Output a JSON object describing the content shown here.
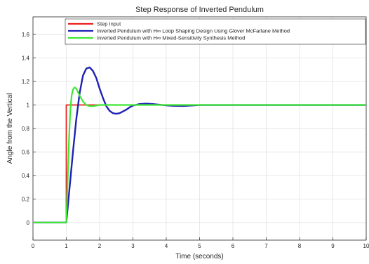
{
  "chart_data": {
    "type": "line",
    "title": "Step Response of Inverted Pendulum",
    "xlabel": "Time (seconds)",
    "ylabel": "Angle from the Vertical",
    "xlim": [
      0,
      10
    ],
    "ylim": [
      -0.15,
      1.75
    ],
    "xticks": [
      "0",
      "1",
      "2",
      "3",
      "4",
      "5",
      "6",
      "7",
      "8",
      "9",
      "10"
    ],
    "xtick_values": [
      0,
      1,
      2,
      3,
      4,
      5,
      6,
      7,
      8,
      9,
      10
    ],
    "yticks": [
      "0",
      "0.2",
      "0.4",
      "0.6",
      "0.8",
      "1",
      "1.2",
      "1.4",
      "1.6"
    ],
    "ytick_values": [
      0,
      0.2,
      0.4,
      0.6,
      0.8,
      1.0,
      1.2,
      1.4,
      1.6
    ],
    "grid": true,
    "legend_position": "top",
    "series": [
      {
        "name": "Step Input",
        "color": "#e8231f",
        "x": [
          0,
          1.0,
          1.0,
          10
        ],
        "y": [
          0,
          0,
          1,
          1
        ]
      },
      {
        "name": "Inverted Pendulum with H∞ Loop Shaping Design Using Glover McFarlane Method",
        "color": "#1f22b4",
        "x": [
          0,
          1.0,
          1.1,
          1.2,
          1.3,
          1.4,
          1.5,
          1.6,
          1.7,
          1.8,
          1.9,
          2.0,
          2.1,
          2.2,
          2.3,
          2.4,
          2.5,
          2.6,
          2.7,
          2.8,
          2.9,
          3.0,
          3.2,
          3.4,
          3.6,
          3.8,
          4.0,
          4.2,
          4.5,
          4.8,
          5.0,
          6.0,
          7.0,
          8.0,
          9.0,
          10
        ],
        "y": [
          0,
          0,
          0.3,
          0.6,
          0.88,
          1.1,
          1.25,
          1.31,
          1.32,
          1.29,
          1.23,
          1.14,
          1.06,
          0.99,
          0.95,
          0.93,
          0.925,
          0.93,
          0.945,
          0.96,
          0.98,
          0.995,
          1.008,
          1.012,
          1.008,
          1.002,
          0.997,
          0.993,
          0.992,
          0.996,
          1.0,
          1.0,
          1.0,
          1.0,
          1.0,
          1.0
        ]
      },
      {
        "name": "Inverted Pendulum with H∞ Mixed-Sensitivity Synthesis Method",
        "color": "#3ee831",
        "x": [
          0,
          1.0,
          1.04,
          1.08,
          1.12,
          1.16,
          1.2,
          1.25,
          1.3,
          1.35,
          1.4,
          1.5,
          1.6,
          1.7,
          1.8,
          1.9,
          2.0,
          2.2,
          2.5,
          3.0,
          4.0,
          5.0,
          6.0,
          7.0,
          8.0,
          9.0,
          10
        ],
        "y": [
          0,
          0,
          0.35,
          0.7,
          0.95,
          1.08,
          1.13,
          1.15,
          1.14,
          1.11,
          1.08,
          1.03,
          1.0,
          0.99,
          0.99,
          0.995,
          1.0,
          1.0,
          1.0,
          1.0,
          1.0,
          1.0,
          1.0,
          1.0,
          1.0,
          1.0,
          1.0
        ]
      }
    ]
  }
}
